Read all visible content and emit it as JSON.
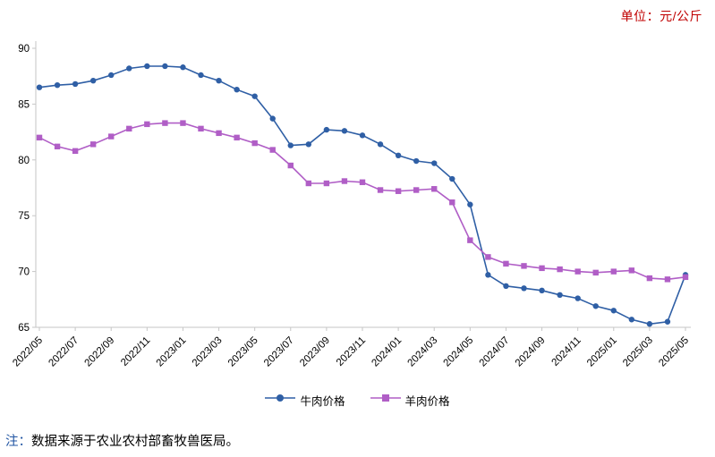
{
  "page": {
    "unit_label": "单位：元/公斤",
    "unit_color": "#c00000",
    "note_prefix": "注：",
    "note_prefix_color": "#2155a3",
    "note_text": "数据来源于农业农村部畜牧兽医局。"
  },
  "chart_data": {
    "type": "line",
    "title": "",
    "xlabel": "",
    "ylabel": "",
    "unit": "元/公斤",
    "ylim": [
      65,
      90
    ],
    "yticks": [
      65,
      70,
      75,
      80,
      85,
      90
    ],
    "grid": false,
    "legend_position": "bottom",
    "xtick_every": 2,
    "x": [
      "2022/05",
      "2022/06",
      "2022/07",
      "2022/08",
      "2022/09",
      "2022/10",
      "2022/11",
      "2022/12",
      "2023/01",
      "2023/02",
      "2023/03",
      "2023/04",
      "2023/05",
      "2023/06",
      "2023/07",
      "2023/08",
      "2023/09",
      "2023/10",
      "2023/11",
      "2023/12",
      "2024/01",
      "2024/02",
      "2024/03",
      "2024/04",
      "2024/05",
      "2024/06",
      "2024/07",
      "2024/08",
      "2024/09",
      "2024/10",
      "2024/11",
      "2024/12",
      "2025/01",
      "2025/02",
      "2025/03",
      "2025/04",
      "2025/05"
    ],
    "series": [
      {
        "name": "牛肉价格",
        "marker": "circle",
        "color": "#2f5fa5",
        "values": [
          86.5,
          86.7,
          86.8,
          87.1,
          87.6,
          88.2,
          88.4,
          88.4,
          88.3,
          87.6,
          87.1,
          86.3,
          85.7,
          83.7,
          81.3,
          81.4,
          82.7,
          82.6,
          82.2,
          81.4,
          80.4,
          79.9,
          79.7,
          78.3,
          76.0,
          69.7,
          68.7,
          68.5,
          68.3,
          67.9,
          67.6,
          66.9,
          66.5,
          65.7,
          65.3,
          65.5,
          69.7
        ]
      },
      {
        "name": "羊肉价格",
        "marker": "square",
        "color": "#b05ec6",
        "values": [
          82.0,
          81.2,
          80.8,
          81.4,
          82.1,
          82.8,
          83.2,
          83.3,
          83.3,
          82.8,
          82.4,
          82.0,
          81.5,
          80.9,
          79.5,
          77.9,
          77.9,
          78.1,
          78.0,
          77.3,
          77.2,
          77.3,
          77.4,
          76.2,
          72.8,
          71.3,
          70.7,
          70.5,
          70.3,
          70.2,
          70.0,
          69.9,
          70.0,
          70.1,
          69.4,
          69.3,
          69.5
        ]
      }
    ]
  }
}
